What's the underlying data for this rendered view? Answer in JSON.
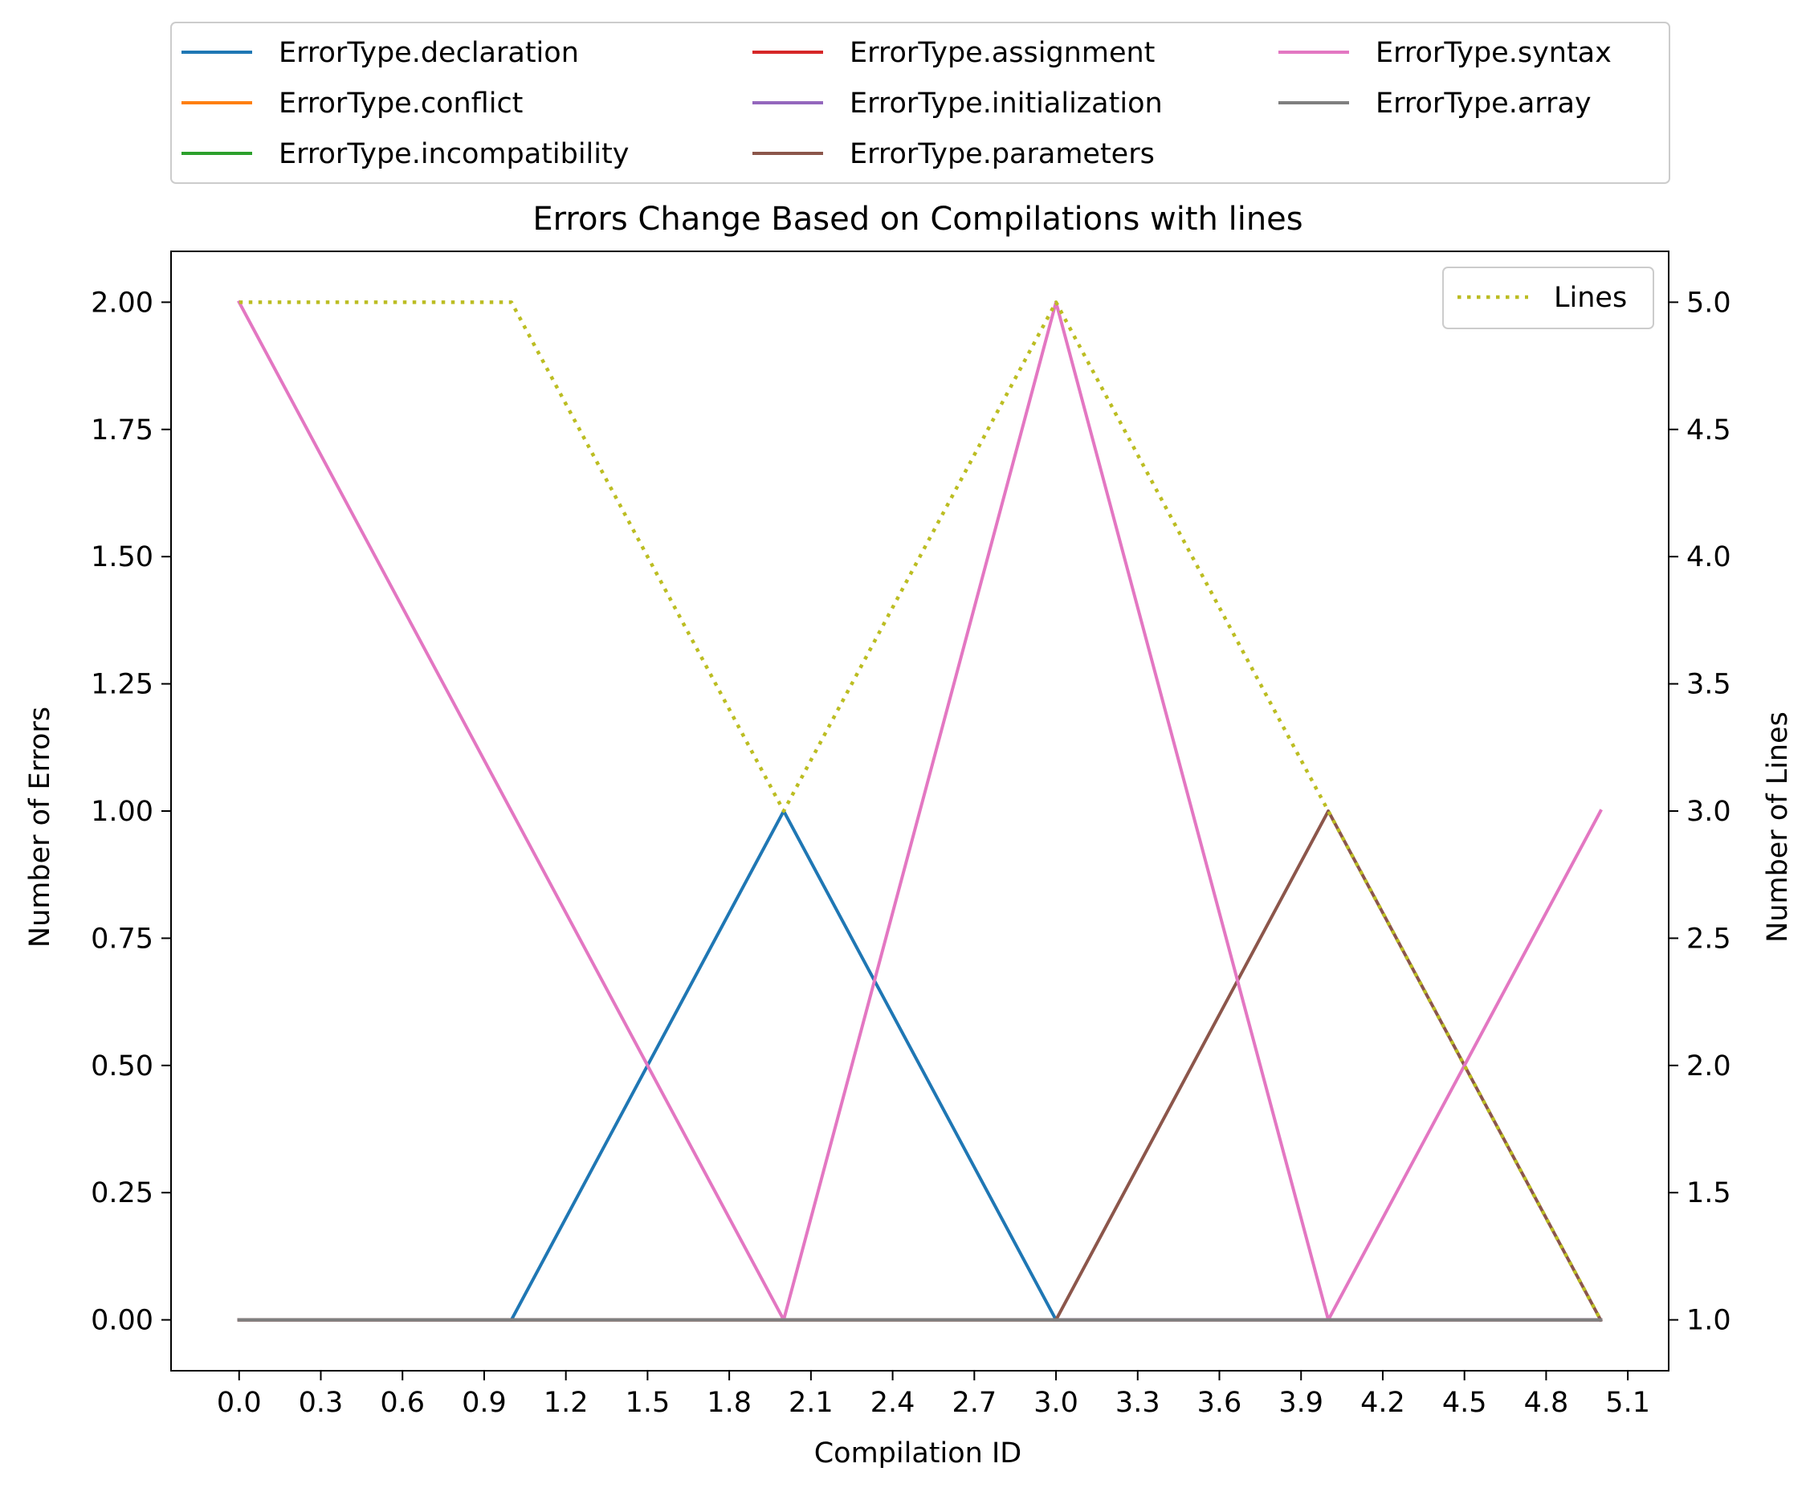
{
  "chart_data": {
    "type": "line",
    "title": "Errors Change Based on Compilations with lines",
    "xlabel": "Compilation ID",
    "ylabel": "Number of Errors",
    "y2label": "Number of Lines",
    "x": [
      0,
      1,
      2,
      3,
      4,
      5
    ],
    "xlim": [
      -0.25,
      5.25
    ],
    "ylim": [
      -0.1,
      2.1
    ],
    "y2lim": [
      0.8,
      5.2
    ],
    "x_ticks": [
      "0.0",
      "0.3",
      "0.6",
      "0.9",
      "1.2",
      "1.5",
      "1.8",
      "2.1",
      "2.4",
      "2.7",
      "3.0",
      "3.3",
      "3.6",
      "3.9",
      "4.2",
      "4.5",
      "4.8",
      "5.1"
    ],
    "y_ticks": [
      "0.00",
      "0.25",
      "0.50",
      "0.75",
      "1.00",
      "1.25",
      "1.50",
      "1.75",
      "2.00"
    ],
    "y2_ticks": [
      "1.0",
      "1.5",
      "2.0",
      "2.5",
      "3.0",
      "3.5",
      "4.0",
      "4.5",
      "5.0"
    ],
    "grid": false,
    "legend_placement": "top, above the axes, 3 columns",
    "series": [
      {
        "name": "ErrorType.declaration",
        "color": "#1f77b4",
        "values": [
          0,
          0,
          1,
          0,
          0,
          0
        ]
      },
      {
        "name": "ErrorType.conflict",
        "color": "#ff7f0e",
        "values": [
          0,
          0,
          0,
          0,
          0,
          0
        ]
      },
      {
        "name": "ErrorType.incompatibility",
        "color": "#2ca02c",
        "values": [
          0,
          0,
          0,
          0,
          0,
          0
        ]
      },
      {
        "name": "ErrorType.assignment",
        "color": "#d62728",
        "values": [
          0,
          0,
          0,
          0,
          0,
          0
        ]
      },
      {
        "name": "ErrorType.initialization",
        "color": "#9467bd",
        "values": [
          0,
          0,
          0,
          0,
          0,
          0
        ]
      },
      {
        "name": "ErrorType.parameters",
        "color": "#8c564b",
        "values": [
          0,
          0,
          0,
          0,
          1,
          0
        ]
      },
      {
        "name": "ErrorType.syntax",
        "color": "#e377c2",
        "values": [
          2,
          1,
          0,
          2,
          0,
          1
        ]
      },
      {
        "name": "ErrorType.array",
        "color": "#7f7f7f",
        "values": [
          0,
          0,
          0,
          0,
          0,
          0
        ]
      }
    ],
    "secondary_series": {
      "name": "Lines",
      "color": "#bcbd22",
      "style": "dotted",
      "values": [
        5,
        5,
        3,
        5,
        3,
        1
      ],
      "legend_placement": "top-right"
    }
  }
}
